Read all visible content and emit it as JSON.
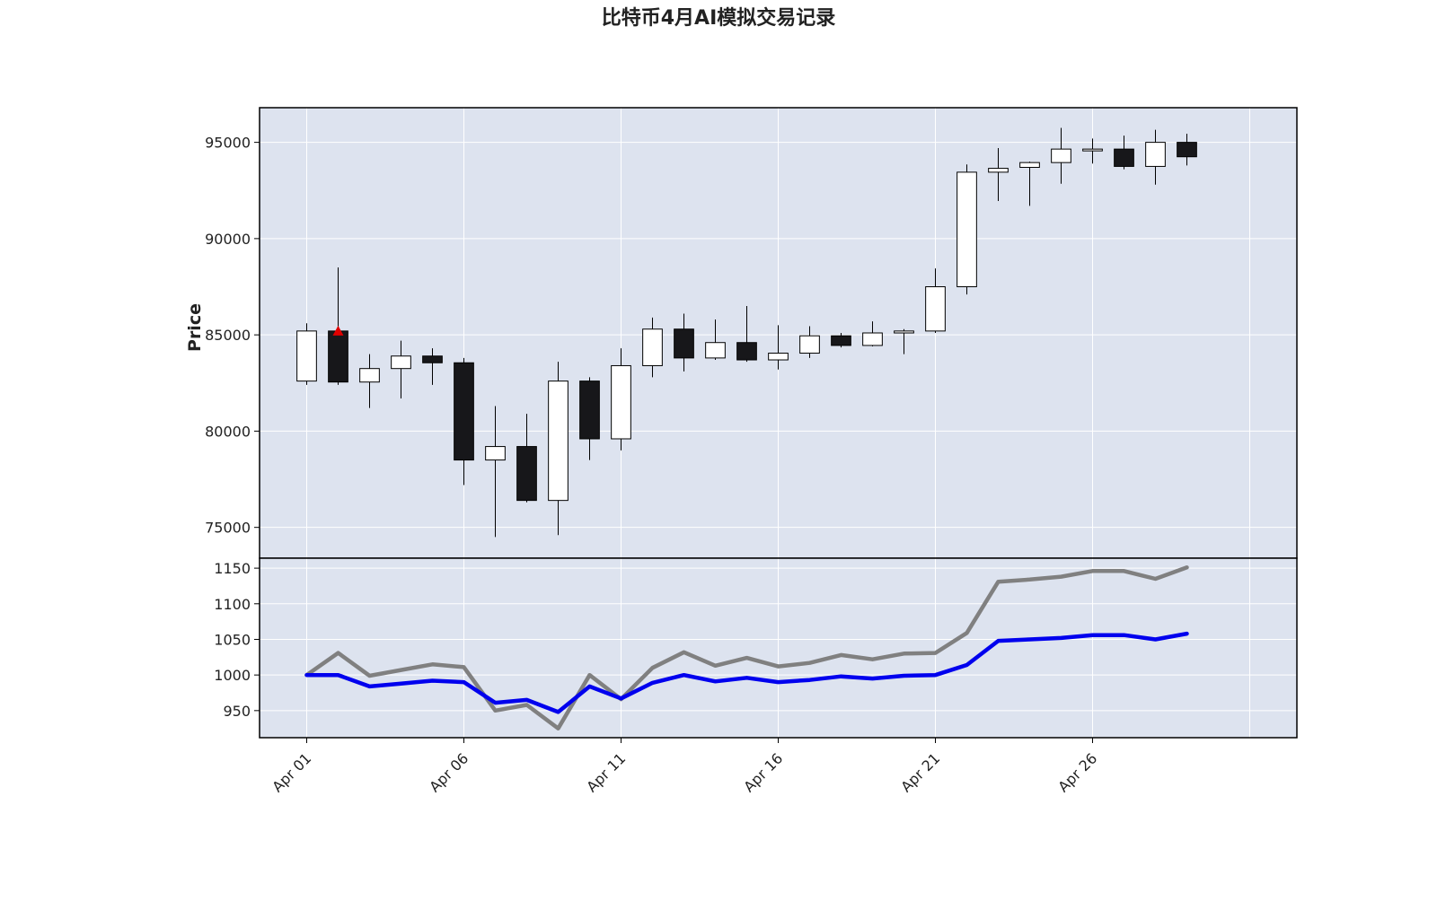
{
  "title": "比特币4月AI模拟交易记录",
  "colors": {
    "panel_bg": "#dde3ef",
    "grid": "#ffffff",
    "candle_up": "#ffffff",
    "candle_down": "#17171a",
    "wick": "#000000",
    "marker": "#e00000"
  },
  "chart_data": [
    {
      "type": "candlestick",
      "ylabel": "Price",
      "ylim": [
        73400,
        96800
      ],
      "yticks": [
        "75000",
        "80000",
        "85000",
        "90000",
        "95000"
      ],
      "yticks_values": [
        75000,
        80000,
        85000,
        90000,
        95000
      ],
      "xlim": [
        -1.5,
        31.5
      ],
      "xticks": [
        "Apr 01",
        "Apr 06",
        "Apr 11",
        "Apr 16",
        "Apr 21",
        "Apr 26"
      ],
      "xticks_index": [
        0,
        5,
        10,
        15,
        20,
        25
      ],
      "grid": true,
      "candles": [
        {
          "date": "Apr 01",
          "open": 82600,
          "high": 85600,
          "low": 82400,
          "close": 85200
        },
        {
          "date": "Apr 02",
          "open": 85200,
          "high": 88500,
          "low": 82400,
          "close": 82550
        },
        {
          "date": "Apr 03",
          "open": 82550,
          "high": 84000,
          "low": 81200,
          "close": 83250
        },
        {
          "date": "Apr 04",
          "open": 83250,
          "high": 84700,
          "low": 81700,
          "close": 83900
        },
        {
          "date": "Apr 05",
          "open": 83900,
          "high": 84300,
          "low": 82400,
          "close": 83550
        },
        {
          "date": "Apr 06",
          "open": 83550,
          "high": 83800,
          "low": 77200,
          "close": 78500
        },
        {
          "date": "Apr 07",
          "open": 78500,
          "high": 81300,
          "low": 74500,
          "close": 79200
        },
        {
          "date": "Apr 08",
          "open": 79200,
          "high": 80900,
          "low": 76300,
          "close": 76400
        },
        {
          "date": "Apr 09",
          "open": 76400,
          "high": 83600,
          "low": 74600,
          "close": 82600
        },
        {
          "date": "Apr 10",
          "open": 82600,
          "high": 82800,
          "low": 78500,
          "close": 79600
        },
        {
          "date": "Apr 11",
          "open": 79600,
          "high": 84300,
          "low": 79000,
          "close": 83400
        },
        {
          "date": "Apr 12",
          "open": 83400,
          "high": 85900,
          "low": 82800,
          "close": 85300
        },
        {
          "date": "Apr 13",
          "open": 85300,
          "high": 86100,
          "low": 83100,
          "close": 83800
        },
        {
          "date": "Apr 14",
          "open": 83800,
          "high": 85800,
          "low": 83700,
          "close": 84600
        },
        {
          "date": "Apr 15",
          "open": 84600,
          "high": 86500,
          "low": 83600,
          "close": 83700
        },
        {
          "date": "Apr 16",
          "open": 83700,
          "high": 85500,
          "low": 83200,
          "close": 84050
        },
        {
          "date": "Apr 17",
          "open": 84050,
          "high": 85450,
          "low": 83800,
          "close": 84950
        },
        {
          "date": "Apr 18",
          "open": 84950,
          "high": 85100,
          "low": 84350,
          "close": 84450
        },
        {
          "date": "Apr 19",
          "open": 84450,
          "high": 85700,
          "low": 84400,
          "close": 85100
        },
        {
          "date": "Apr 20",
          "open": 85100,
          "high": 85300,
          "low": 84000,
          "close": 85200
        },
        {
          "date": "Apr 21",
          "open": 85200,
          "high": 88450,
          "low": 85100,
          "close": 87500
        },
        {
          "date": "Apr 22",
          "open": 87500,
          "high": 93850,
          "low": 87100,
          "close": 93450
        },
        {
          "date": "Apr 23",
          "open": 93450,
          "high": 94700,
          "low": 91950,
          "close": 93650
        },
        {
          "date": "Apr 24",
          "open": 93700,
          "high": 94000,
          "low": 91700,
          "close": 93950
        },
        {
          "date": "Apr 25",
          "open": 93950,
          "high": 95750,
          "low": 92850,
          "close": 94650
        },
        {
          "date": "Apr 26",
          "open": 94650,
          "high": 95200,
          "low": 93900,
          "close": 94650
        },
        {
          "date": "Apr 27",
          "open": 94650,
          "high": 95350,
          "low": 93600,
          "close": 93750
        },
        {
          "date": "Apr 28",
          "open": 93750,
          "high": 95650,
          "low": 92800,
          "close": 95000
        },
        {
          "date": "Apr 29",
          "open": 95000,
          "high": 95450,
          "low": 93800,
          "close": 94250
        }
      ],
      "markers": [
        {
          "date": "Apr 02",
          "index": 1,
          "price": 85200,
          "shape": "triangle-up"
        }
      ]
    },
    {
      "type": "line",
      "ylim": [
        912,
        1164
      ],
      "yticks": [
        "950",
        "1000",
        "1050",
        "1100",
        "1150"
      ],
      "yticks_values": [
        950,
        1000,
        1050,
        1100,
        1150
      ],
      "grid": true,
      "series": [
        {
          "color": "#808080",
          "values": [
            1000,
            1031,
            999,
            1007,
            1015,
            1011,
            950,
            958,
            925,
            1000,
            966,
            1010,
            1032,
            1013,
            1024,
            1012,
            1017,
            1028,
            1022,
            1030,
            1031,
            1059,
            1131,
            1134,
            1138,
            1146,
            1146,
            1135,
            1151
          ]
        },
        {
          "color": "#0000ee",
          "values": [
            1000,
            1000,
            984,
            988,
            992,
            990,
            961,
            965,
            948,
            984,
            967,
            989,
            1000,
            991,
            996,
            990,
            993,
            998,
            995,
            999,
            1000,
            1014,
            1048,
            1050,
            1052,
            1056,
            1056,
            1050,
            1058
          ]
        }
      ]
    }
  ]
}
